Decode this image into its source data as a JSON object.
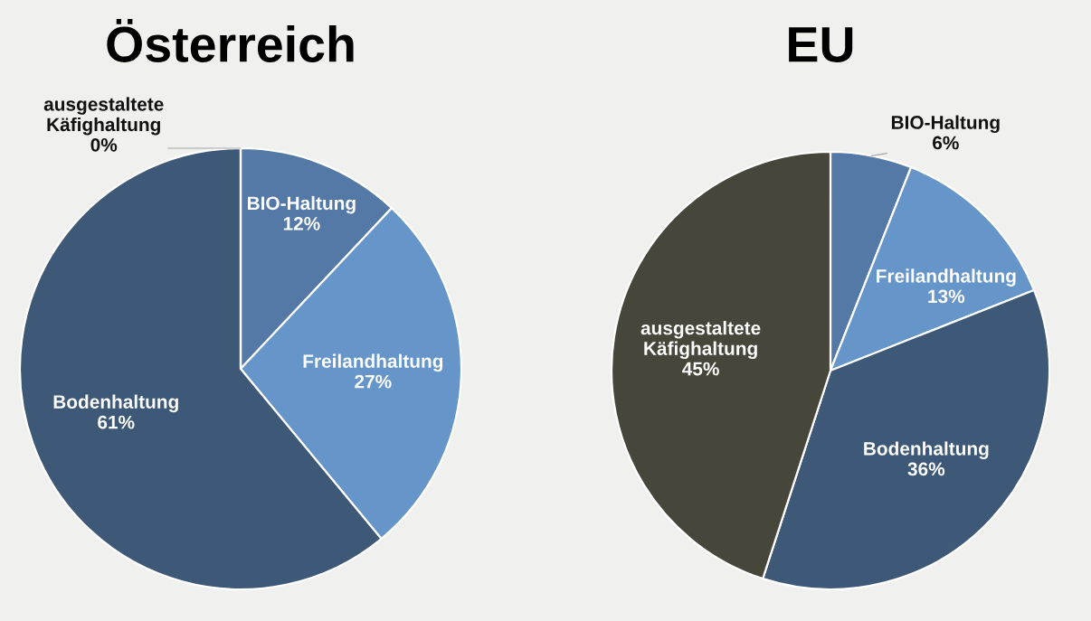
{
  "chart_data": [
    {
      "type": "pie",
      "title": "Österreich",
      "categories": [
        "BIO-Haltung",
        "Freilandhaltung",
        "Bodenhaltung",
        "ausgestaltete Käfighaltung"
      ],
      "values": [
        12,
        27,
        61,
        0
      ],
      "colors": [
        "#5479a6",
        "#6595c9",
        "#3e5877",
        "#46473a"
      ],
      "value_labels": [
        "12%",
        "27%",
        "61%",
        "0%"
      ]
    },
    {
      "type": "pie",
      "title": "EU",
      "categories": [
        "BIO-Haltung",
        "Freilandhaltung",
        "Bodenhaltung",
        "ausgestaltete Käfighaltung"
      ],
      "values": [
        6,
        13,
        36,
        45
      ],
      "colors": [
        "#5479a6",
        "#6595c9",
        "#3e5877",
        "#46473a"
      ],
      "value_labels": [
        "6%",
        "13%",
        "36%",
        "45%"
      ]
    }
  ]
}
